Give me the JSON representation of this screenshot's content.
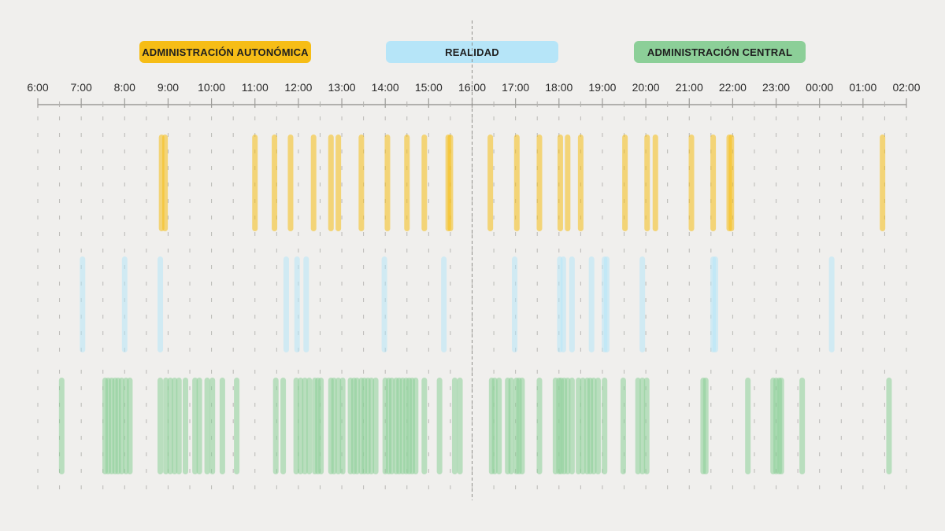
{
  "legend": {
    "autonomica": "ADMINISTRACIÓN AUTONÓMICA",
    "realidad": "REALIDAD",
    "central": "ADMINISTRACIÓN CENTRAL"
  },
  "chart_data": {
    "type": "timeline",
    "x_unit": "hours (6 = 6:00; values above 24 are next day)",
    "xlim": [
      6,
      26
    ],
    "tick_labels": [
      "6:00",
      "7:00",
      "8:00",
      "9:00",
      "10:00",
      "11:00",
      "12:00",
      "13:00",
      "14:00",
      "15:00",
      "16:00",
      "17:00",
      "18:00",
      "19:00",
      "20:00",
      "21:00",
      "22:00",
      "23:00",
      "00:00",
      "01:00",
      "02:00"
    ],
    "reference_line": 16,
    "grid": true,
    "series": [
      {
        "name": "ADMINISTRACIÓN AUTONÓMICA",
        "color": "#f6bd16",
        "events": [
          8.85,
          8.93,
          11.0,
          11.45,
          11.82,
          12.35,
          12.75,
          12.92,
          13.45,
          14.05,
          14.5,
          14.9,
          15.45,
          15.5,
          16.42,
          17.03,
          17.55,
          18.03,
          18.2,
          18.5,
          19.52,
          20.03,
          20.22,
          21.05,
          21.55,
          21.92,
          21.97,
          25.45
        ],
        "ylim_frac": [
          0.0,
          1.0
        ]
      },
      {
        "name": "REALIDAD",
        "color": "#b6e5f8",
        "events": [
          7.03,
          8.0,
          8.82,
          11.72,
          11.97,
          12.18,
          13.98,
          15.35,
          16.98,
          18.02,
          18.1,
          18.3,
          18.75,
          19.05,
          19.1,
          19.92,
          21.55,
          21.6,
          24.28
        ],
        "ylim_frac": [
          0.0,
          1.0
        ]
      },
      {
        "name": "ADMINISTRACIÓN CENTRAL",
        "color": "#8ccf98",
        "events": [
          6.55,
          7.55,
          7.62,
          7.7,
          7.78,
          7.85,
          7.93,
          8.03,
          8.12,
          8.82,
          8.95,
          9.05,
          9.15,
          9.25,
          9.4,
          9.62,
          9.72,
          9.9,
          10.02,
          10.25,
          10.58,
          11.48,
          11.65,
          11.95,
          12.05,
          12.15,
          12.25,
          12.38,
          12.45,
          12.52,
          12.75,
          12.82,
          12.92,
          13.02,
          13.2,
          13.28,
          13.35,
          13.45,
          13.52,
          13.6,
          13.68,
          13.78,
          14.0,
          14.08,
          14.15,
          14.25,
          14.32,
          14.4,
          14.48,
          14.55,
          14.62,
          14.7,
          14.9,
          15.25,
          15.6,
          15.72,
          16.45,
          16.52,
          16.62,
          16.82,
          16.9,
          17.02,
          17.08,
          17.15,
          17.55,
          17.92,
          18.0,
          18.05,
          18.12,
          18.2,
          18.3,
          18.45,
          18.55,
          18.65,
          18.72,
          18.8,
          18.9,
          19.05,
          19.48,
          19.82,
          19.92,
          20.02,
          21.32,
          21.38,
          22.35,
          22.93,
          23.0,
          23.07,
          23.12,
          23.6,
          25.6
        ],
        "ylim_frac": [
          0.0,
          1.0
        ]
      }
    ]
  }
}
